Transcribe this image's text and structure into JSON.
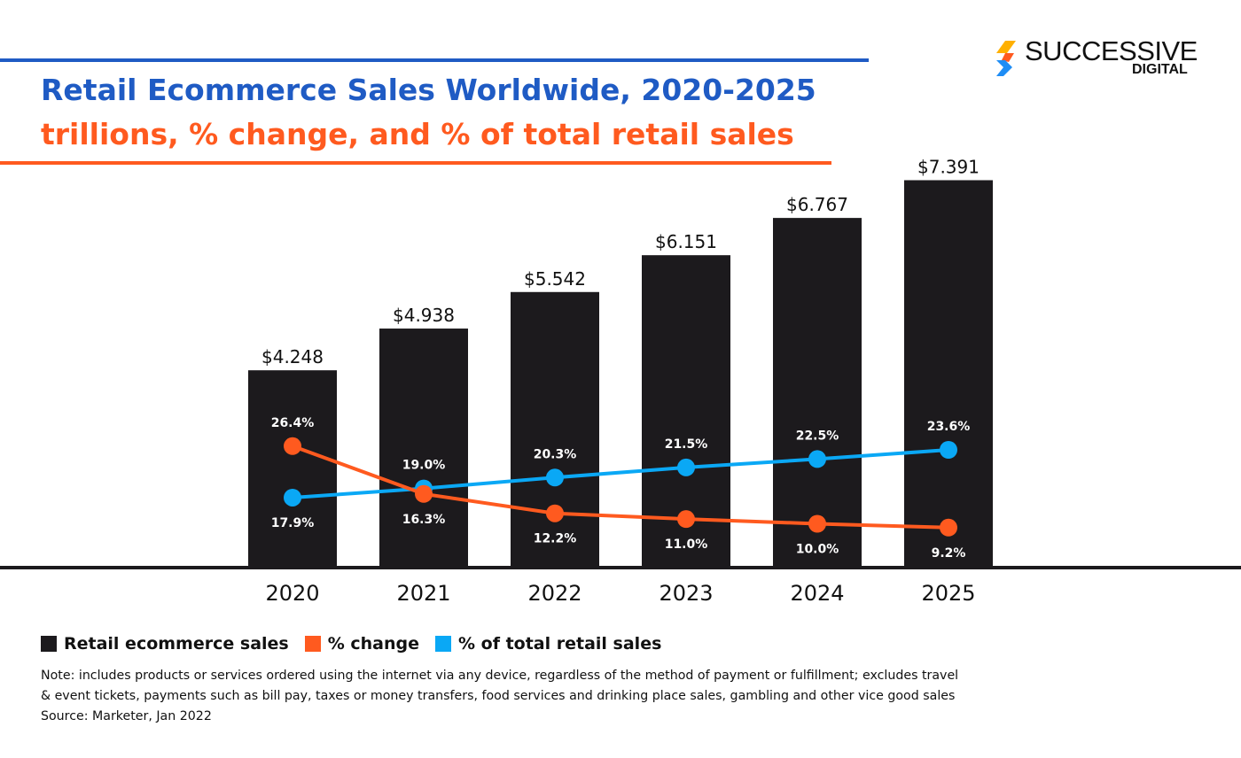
{
  "header": {
    "title": "Retail Ecommerce Sales Worldwide, 2020-2025",
    "subtitle": "trillions, % change, and % of total retail sales"
  },
  "logo": {
    "name": "SUCCESSIVE",
    "sub": "DIGITAL"
  },
  "colors": {
    "bars": "#1c1a1d",
    "change": "#ff5a1f",
    "share": "#0aa8f5",
    "title": "#1f5bc4",
    "subtitle": "#ff5a1f"
  },
  "chart_data": {
    "type": "bar",
    "title": "Retail Ecommerce Sales Worldwide, 2020-2025",
    "subtitle": "trillions, % change, and % of total retail sales",
    "categories": [
      "2020",
      "2021",
      "2022",
      "2023",
      "2024",
      "2025"
    ],
    "series": [
      {
        "name": "Retail ecommerce sales",
        "type": "bar",
        "values": [
          4.248,
          4.938,
          5.542,
          6.151,
          6.767,
          7.391
        ],
        "labels": [
          "$4.248",
          "$4.938",
          "$5.542",
          "$6.151",
          "$6.767",
          "$7.391"
        ]
      },
      {
        "name": "% change",
        "type": "line",
        "values": [
          26.4,
          16.3,
          12.2,
          11.0,
          10.0,
          9.2
        ],
        "labels": [
          "26.4%",
          "16.3%",
          "12.2%",
          "11.0%",
          "10.0%",
          "9.2%"
        ]
      },
      {
        "name": "% of total retail sales",
        "type": "line",
        "values": [
          17.9,
          19.0,
          20.3,
          21.5,
          22.5,
          23.6
        ],
        "labels": [
          "17.9%",
          "19.0%",
          "20.3%",
          "21.5%",
          "22.5%",
          "23.6%"
        ]
      }
    ],
    "legend": "bottom-left",
    "grid": false
  },
  "footer": {
    "note_line1": "Note: includes products or services ordered using the internet via any device, regardless of the method of payment or fulfillment; excludes travel",
    "note_line2": "& event tickets, payments such as bill pay, taxes or money transfers, food services and drinking place sales, gambling and other vice good sales",
    "source": "Source: Marketer, Jan 2022"
  }
}
